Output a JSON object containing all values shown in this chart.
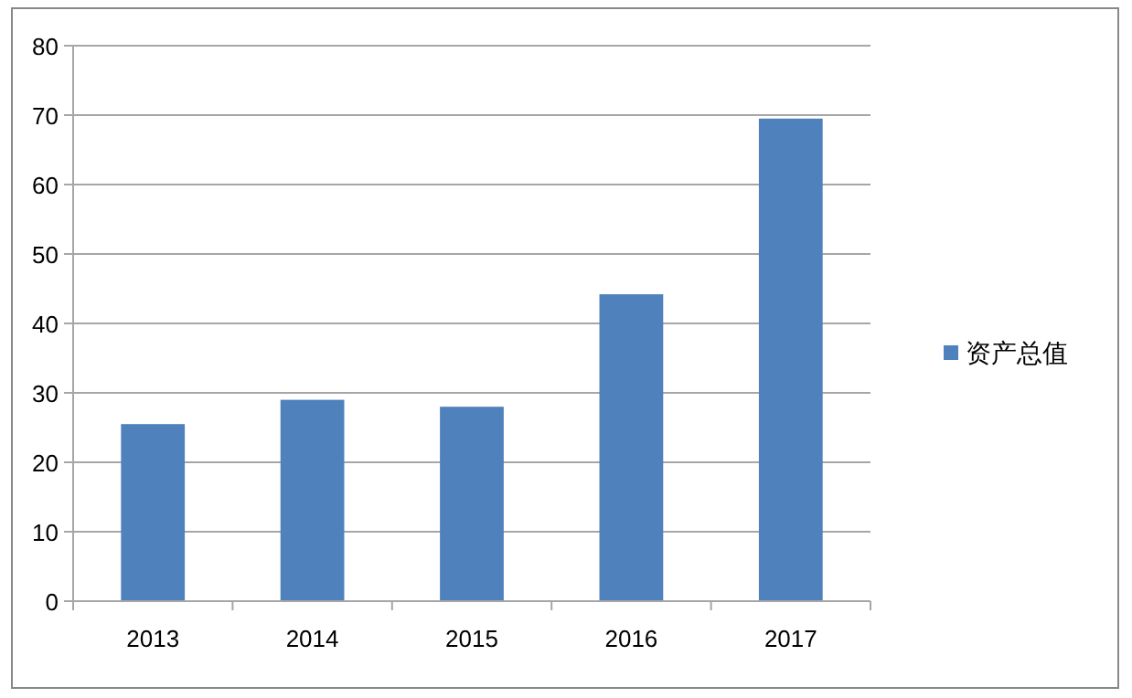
{
  "chart_data": {
    "type": "bar",
    "categories": [
      "2013",
      "2014",
      "2015",
      "2016",
      "2017"
    ],
    "series": [
      {
        "name": "资产总值",
        "color": "#4f81bd",
        "values": [
          25.5,
          29.0,
          28.0,
          44.2,
          69.5
        ]
      }
    ],
    "ylim": [
      0,
      80
    ],
    "yticks": [
      0,
      10,
      20,
      30,
      40,
      50,
      60,
      70,
      80
    ],
    "grid": "y",
    "legend": "right"
  }
}
